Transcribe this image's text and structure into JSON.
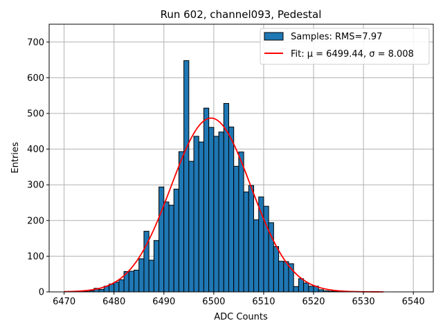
{
  "chart_data": {
    "type": "bar",
    "title": "Run 602, channel093, Pedestal",
    "xlabel": "ADC Counts",
    "ylabel": "Entries",
    "xlim": [
      6467,
      6544
    ],
    "ylim": [
      0,
      750
    ],
    "grid": true,
    "x_ticks": [
      6470,
      6480,
      6490,
      6500,
      6510,
      6520,
      6530,
      6540
    ],
    "y_ticks": [
      0,
      100,
      200,
      300,
      400,
      500,
      600,
      700
    ],
    "bin_start": 6470,
    "bin_width": 1,
    "histogram": {
      "name": "Samples: RMS=7.97",
      "color": "#1f77b4",
      "values": [
        0,
        0,
        1,
        1,
        1,
        3,
        10,
        7,
        16,
        22,
        27,
        34,
        57,
        58,
        61,
        93,
        170,
        89,
        144,
        294,
        252,
        243,
        288,
        393,
        648,
        366,
        436,
        420,
        515,
        461,
        436,
        448,
        528,
        462,
        352,
        392,
        280,
        298,
        202,
        266,
        240,
        194,
        127,
        86,
        85,
        79,
        15,
        37,
        25,
        16,
        16,
        6,
        3,
        2,
        1,
        1,
        1,
        1,
        0,
        0,
        0,
        0,
        0,
        0,
        0
      ]
    },
    "fit": {
      "name": "Fit: μ = 6499.44, σ = 8.008",
      "mu": 6499.44,
      "sigma": 8.008,
      "amplitude": 487,
      "x_range": [
        6470,
        6534
      ],
      "color": "#ff0000"
    },
    "legend_position": "upper right"
  }
}
